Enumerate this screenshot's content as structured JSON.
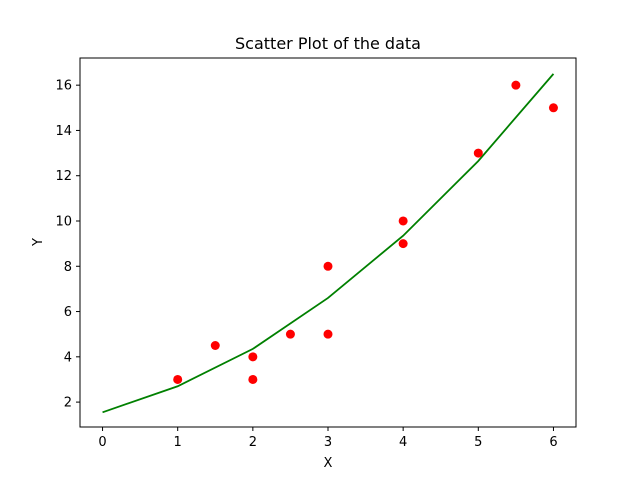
{
  "chart_data": {
    "type": "scatter",
    "title": "Scatter Plot of the data",
    "xlabel": "X",
    "ylabel": "Y",
    "xlim": [
      -0.3,
      6.3
    ],
    "ylim": [
      0.9,
      17.2
    ],
    "xticks": [
      0,
      1,
      2,
      3,
      4,
      5,
      6
    ],
    "yticks": [
      2,
      4,
      6,
      8,
      10,
      12,
      14,
      16
    ],
    "grid": false,
    "series": [
      {
        "kind": "scatter",
        "color": "#ff0000",
        "points": [
          [
            1,
            3
          ],
          [
            1.5,
            4.5
          ],
          [
            2,
            4
          ],
          [
            2,
            3
          ],
          [
            2.5,
            5
          ],
          [
            3,
            8
          ],
          [
            3,
            5
          ],
          [
            4,
            10
          ],
          [
            4,
            9
          ],
          [
            5,
            13
          ],
          [
            5.5,
            16
          ],
          [
            6,
            15
          ]
        ]
      },
      {
        "kind": "line",
        "color": "#008000",
        "points": [
          [
            0,
            1.55
          ],
          [
            1,
            2.7
          ],
          [
            2,
            4.35
          ],
          [
            3,
            6.6
          ],
          [
            4,
            9.35
          ],
          [
            5,
            12.65
          ],
          [
            6,
            16.5
          ]
        ]
      }
    ]
  }
}
